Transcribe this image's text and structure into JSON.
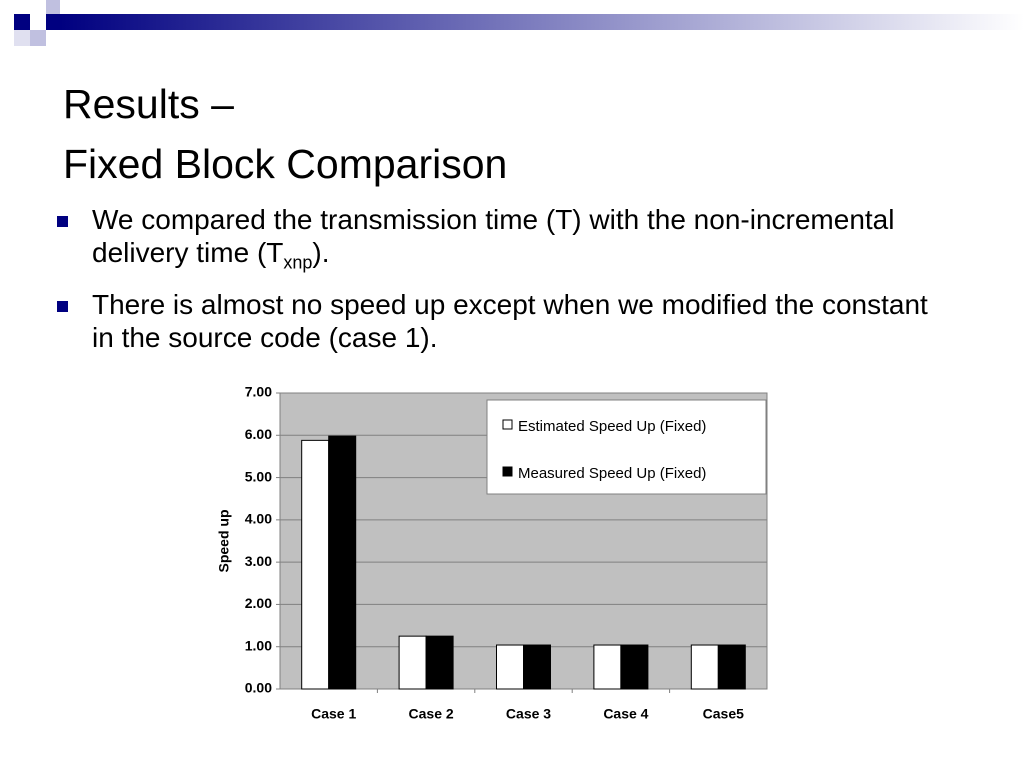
{
  "header": {
    "title_lines": [
      "Results –",
      "Fixed Block Comparison"
    ]
  },
  "bullets": [
    {
      "parts": [
        "We compared the transmission time (T) with the non-incremental delivery time (T",
        "xnp",
        ")."
      ]
    },
    {
      "parts": [
        "There is almost no speed up except when we modified the constant in the source code (case 1)."
      ]
    }
  ],
  "chart_data": {
    "type": "bar",
    "categories": [
      "Case 1",
      "Case 2",
      "Case 3",
      "Case 4",
      "Case5"
    ],
    "series": [
      {
        "name": "Estimated Speed Up (Fixed)",
        "color": "#ffffff",
        "values": [
          5.88,
          1.25,
          1.04,
          1.04,
          1.04
        ]
      },
      {
        "name": "Measured Speed Up (Fixed)",
        "color": "#000000",
        "values": [
          5.98,
          1.25,
          1.04,
          1.04,
          1.04
        ]
      }
    ],
    "ylabel": "Speed up",
    "ylim": [
      0,
      7
    ],
    "yticks": [
      {
        "value": 0,
        "label": "0.00"
      },
      {
        "value": 1,
        "label": "1.00"
      },
      {
        "value": 2,
        "label": "2.00"
      },
      {
        "value": 3,
        "label": "3.00"
      },
      {
        "value": 4,
        "label": "4.00"
      },
      {
        "value": 5,
        "label": "5.00"
      },
      {
        "value": 6,
        "label": "6.00"
      },
      {
        "value": 7,
        "label": "7.00"
      }
    ],
    "grid": true,
    "legend": "top-right",
    "background": "#c0c0c0"
  }
}
